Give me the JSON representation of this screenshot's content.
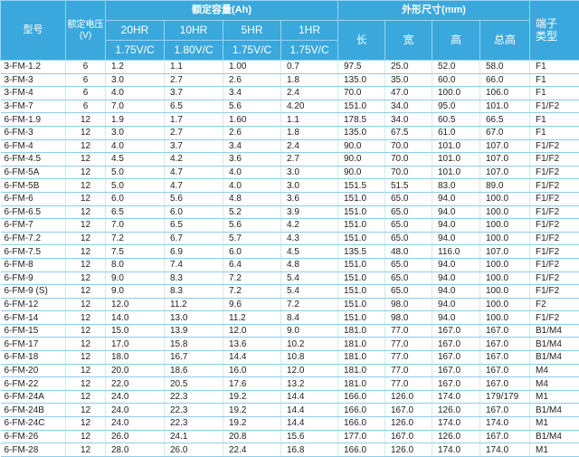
{
  "header": {
    "model": "型号",
    "voltage": "额定电压\n(V)",
    "capacity": "额定容量(Ah)",
    "dimensions": "外形尺寸(mm)",
    "terminal": "端子\n类型",
    "rates": [
      "20HR",
      "10HR",
      "5HR",
      "1HR"
    ],
    "cutoffs": [
      "1.75V/C",
      "1.80V/C",
      "1.75V/C",
      "1.75V/C"
    ],
    "length": "长",
    "width": "宽",
    "height": "高",
    "total_height": "总高"
  },
  "rows": [
    [
      "3-FM-1.2",
      "6",
      "1.2",
      "1.1",
      "1.00",
      "0.7",
      "97.5",
      "25.0",
      "52.0",
      "58.0",
      "F1"
    ],
    [
      "3-FM-3",
      "6",
      "3.0",
      "2.7",
      "2.6",
      "1.8",
      "135.0",
      "35.0",
      "60.0",
      "66.0",
      "F1"
    ],
    [
      "3-FM-4",
      "6",
      "4.0",
      "3.7",
      "3.4",
      "2.4",
      "70.0",
      "47.0",
      "100.0",
      "106.0",
      "F1"
    ],
    [
      "3-FM-7",
      "6",
      "7.0",
      "6.5",
      "5.6",
      "4.20",
      "151.0",
      "34.0",
      "95.0",
      "101.0",
      "F1/F2"
    ],
    [
      "6-FM-1.9",
      "12",
      "1.9",
      "1.7",
      "1.60",
      "1.1",
      "178.5",
      "34.0",
      "60.5",
      "66.5",
      "F1"
    ],
    [
      "6-FM-3",
      "12",
      "3.0",
      "2.7",
      "2.6",
      "1.8",
      "135.0",
      "67.5",
      "61.0",
      "67.0",
      "F1"
    ],
    [
      "6-FM-4",
      "12",
      "4.0",
      "3.7",
      "3.4",
      "2.4",
      "90.0",
      "70.0",
      "101.0",
      "107.0",
      "F1/F2"
    ],
    [
      "6-FM-4.5",
      "12",
      "4.5",
      "4.2",
      "3.6",
      "2.7",
      "90.0",
      "70.0",
      "101.0",
      "107.0",
      "F1/F2"
    ],
    [
      "6-FM-5A",
      "12",
      "5.0",
      "4.7",
      "4.0",
      "3.0",
      "90.0",
      "70.0",
      "101.0",
      "107.0",
      "F1/F2"
    ],
    [
      "6-FM-5B",
      "12",
      "5.0",
      "4.7",
      "4.0",
      "3.0",
      "151.5",
      "51.5",
      "83.0",
      "89.0",
      "F1/F2"
    ],
    [
      "6-FM-6",
      "12",
      "6.0",
      "5.6",
      "4.8",
      "3.6",
      "151.0",
      "65.0",
      "94.0",
      "100.0",
      "F1/F2"
    ],
    [
      "6-FM-6.5",
      "12",
      "6.5",
      "6.0",
      "5.2",
      "3.9",
      "151.0",
      "65.0",
      "94.0",
      "100.0",
      "F1/F2"
    ],
    [
      "6-FM-7",
      "12",
      "7.0",
      "6.5",
      "5.6",
      "4.2",
      "151.0",
      "65.0",
      "94.0",
      "100.0",
      "F1/F2"
    ],
    [
      "6-FM-7.2",
      "12",
      "7.2",
      "6.7",
      "5.7",
      "4.3",
      "151.0",
      "65.0",
      "94.0",
      "100.0",
      "F1/F2"
    ],
    [
      "6-FM-7.5",
      "12",
      "7.5",
      "6.9",
      "6.0",
      "4.5",
      "135.5",
      "48.0",
      "116.0",
      "107.0",
      "F1/F2"
    ],
    [
      "6-FM-8",
      "12",
      "8.0",
      "7.4",
      "6.4",
      "4.8",
      "151.0",
      "65.0",
      "94.0",
      "100.0",
      "F1/F2"
    ],
    [
      "6-FM-9",
      "12",
      "9.0",
      "8.3",
      "7.2",
      "5.4",
      "151.0",
      "65.0",
      "94.0",
      "100.0",
      "F1/F2"
    ],
    [
      "6-FM-9 (S)",
      "12",
      "9.0",
      "8.3",
      "7.2",
      "5.4",
      "151.0",
      "65.0",
      "94.0",
      "100.0",
      "F1/F2"
    ],
    [
      "6-FM-12",
      "12",
      "12.0",
      "11.2",
      "9.6",
      "7.2",
      "151.0",
      "98.0",
      "94.0",
      "100.0",
      "F2"
    ],
    [
      "6-FM-14",
      "12",
      "14.0",
      "13.0",
      "11.2",
      "8.4",
      "151.0",
      "98.0",
      "94.0",
      "100.0",
      "F1/F2"
    ],
    [
      "6-FM-15",
      "12",
      "15.0",
      "13.9",
      "12.0",
      "9.0",
      "181.0",
      "77.0",
      "167.0",
      "167.0",
      "B1/M4"
    ],
    [
      "6-FM-17",
      "12",
      "17.0",
      "15.8",
      "13.6",
      "10.2",
      "181.0",
      "77.0",
      "167.0",
      "167.0",
      "B1/M4"
    ],
    [
      "6-FM-18",
      "12",
      "18.0",
      "16.7",
      "14.4",
      "10.8",
      "181.0",
      "77.0",
      "167.0",
      "167.0",
      "B1/M4"
    ],
    [
      "6-FM-20",
      "12",
      "20.0",
      "18.6",
      "16.0",
      "12.0",
      "181.0",
      "77.0",
      "167.0",
      "167.0",
      "M4"
    ],
    [
      "6-FM-22",
      "12",
      "22.0",
      "20.5",
      "17.6",
      "13.2",
      "181.0",
      "77.0",
      "167.0",
      "167.0",
      "M4"
    ],
    [
      "6-FM-24A",
      "12",
      "24.0",
      "22.3",
      "19.2",
      "14.4",
      "166.0",
      "126.0",
      "174.0",
      "179/179",
      "M1"
    ],
    [
      "6-FM-24B",
      "12",
      "24.0",
      "22.3",
      "19.2",
      "14.4",
      "166.0",
      "167.0",
      "126.0",
      "167.0",
      "B1/M4"
    ],
    [
      "6-FM-24C",
      "12",
      "24.0",
      "22.3",
      "19.2",
      "14.4",
      "166.0",
      "126.0",
      "174.0",
      "174.0",
      "M1"
    ],
    [
      "6-FM-26",
      "12",
      "26.0",
      "24.1",
      "20.8",
      "15.6",
      "177.0",
      "167.0",
      "126.0",
      "167.0",
      "B1/M4"
    ],
    [
      "6-FM-28",
      "12",
      "28.0",
      "26.0",
      "22.4",
      "16.8",
      "166.0",
      "126.0",
      "174.0",
      "174.0",
      "M1"
    ]
  ]
}
